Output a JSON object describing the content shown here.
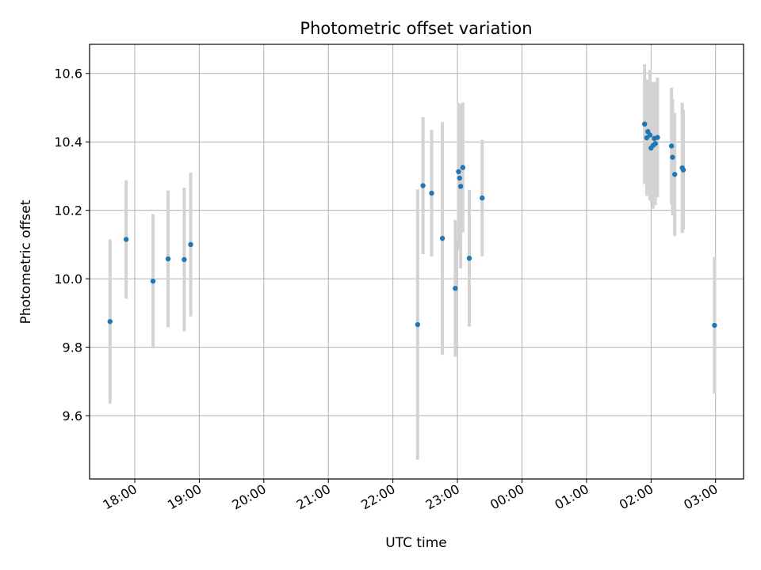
{
  "chart_data": {
    "type": "scatter",
    "title": "Photometric offset variation",
    "xlabel": "UTC time",
    "ylabel": "Photometric offset",
    "x_unit": "hours since 00:00 UTC of the first night (values >= 24 fall after midnight)",
    "xlim": [
      "17:18",
      "03:26"
    ],
    "ylim": [
      9.415,
      10.685
    ],
    "x_tick_labels": [
      "18:00",
      "19:00",
      "20:00",
      "21:00",
      "22:00",
      "23:00",
      "00:00",
      "01:00",
      "02:00",
      "03:00"
    ],
    "y_tick_labels": [
      "9.6",
      "9.8",
      "10.0",
      "10.2",
      "10.4",
      "10.6"
    ],
    "grid": true,
    "colors": {
      "points": "#1f77b4",
      "error_bars": "#d3d3d3",
      "grid": "#b0b0b0"
    },
    "points": [
      {
        "time": "17:37",
        "y": 9.875,
        "err": 0.24
      },
      {
        "time": "17:52",
        "y": 10.115,
        "err": 0.173
      },
      {
        "time": "18:17",
        "y": 9.993,
        "err": 0.196
      },
      {
        "time": "18:31",
        "y": 10.058,
        "err": 0.2
      },
      {
        "time": "18:46",
        "y": 10.056,
        "err": 0.21
      },
      {
        "time": "18:52",
        "y": 10.1,
        "err": 0.21
      },
      {
        "time": "22:23",
        "y": 9.866,
        "err": 0.395
      },
      {
        "time": "22:28",
        "y": 10.272,
        "err": 0.2
      },
      {
        "time": "22:36",
        "y": 10.25,
        "err": 0.185
      },
      {
        "time": "22:46",
        "y": 10.118,
        "err": 0.34
      },
      {
        "time": "22:58",
        "y": 9.972,
        "err": 0.2
      },
      {
        "time": "23:01",
        "y": 10.313,
        "err": 0.2
      },
      {
        "time": "23:02",
        "y": 10.294,
        "err": 0.21
      },
      {
        "time": "23:03",
        "y": 10.27,
        "err": 0.24
      },
      {
        "time": "23:05",
        "y": 10.325,
        "err": 0.19
      },
      {
        "time": "23:11",
        "y": 10.06,
        "err": 0.2
      },
      {
        "time": "23:23",
        "y": 10.236,
        "err": 0.17
      },
      {
        "time": "01:54",
        "y": 10.452,
        "err": 0.175
      },
      {
        "time": "01:56",
        "y": 10.412,
        "err": 0.17
      },
      {
        "time": "01:57",
        "y": 10.43,
        "err": 0.15
      },
      {
        "time": "01:59",
        "y": 10.42,
        "err": 0.19
      },
      {
        "time": "02:00",
        "y": 10.382,
        "err": 0.155
      },
      {
        "time": "02:02",
        "y": 10.39,
        "err": 0.185
      },
      {
        "time": "02:03",
        "y": 10.41,
        "err": 0.165
      },
      {
        "time": "02:04",
        "y": 10.395,
        "err": 0.18
      },
      {
        "time": "02:06",
        "y": 10.413,
        "err": 0.175
      },
      {
        "time": "02:19",
        "y": 10.388,
        "err": 0.17
      },
      {
        "time": "02:20",
        "y": 10.355,
        "err": 0.17
      },
      {
        "time": "02:22",
        "y": 10.305,
        "err": 0.18
      },
      {
        "time": "02:29",
        "y": 10.324,
        "err": 0.19
      },
      {
        "time": "02:30",
        "y": 10.318,
        "err": 0.175
      },
      {
        "time": "02:59",
        "y": 9.864,
        "err": 0.2
      }
    ]
  }
}
